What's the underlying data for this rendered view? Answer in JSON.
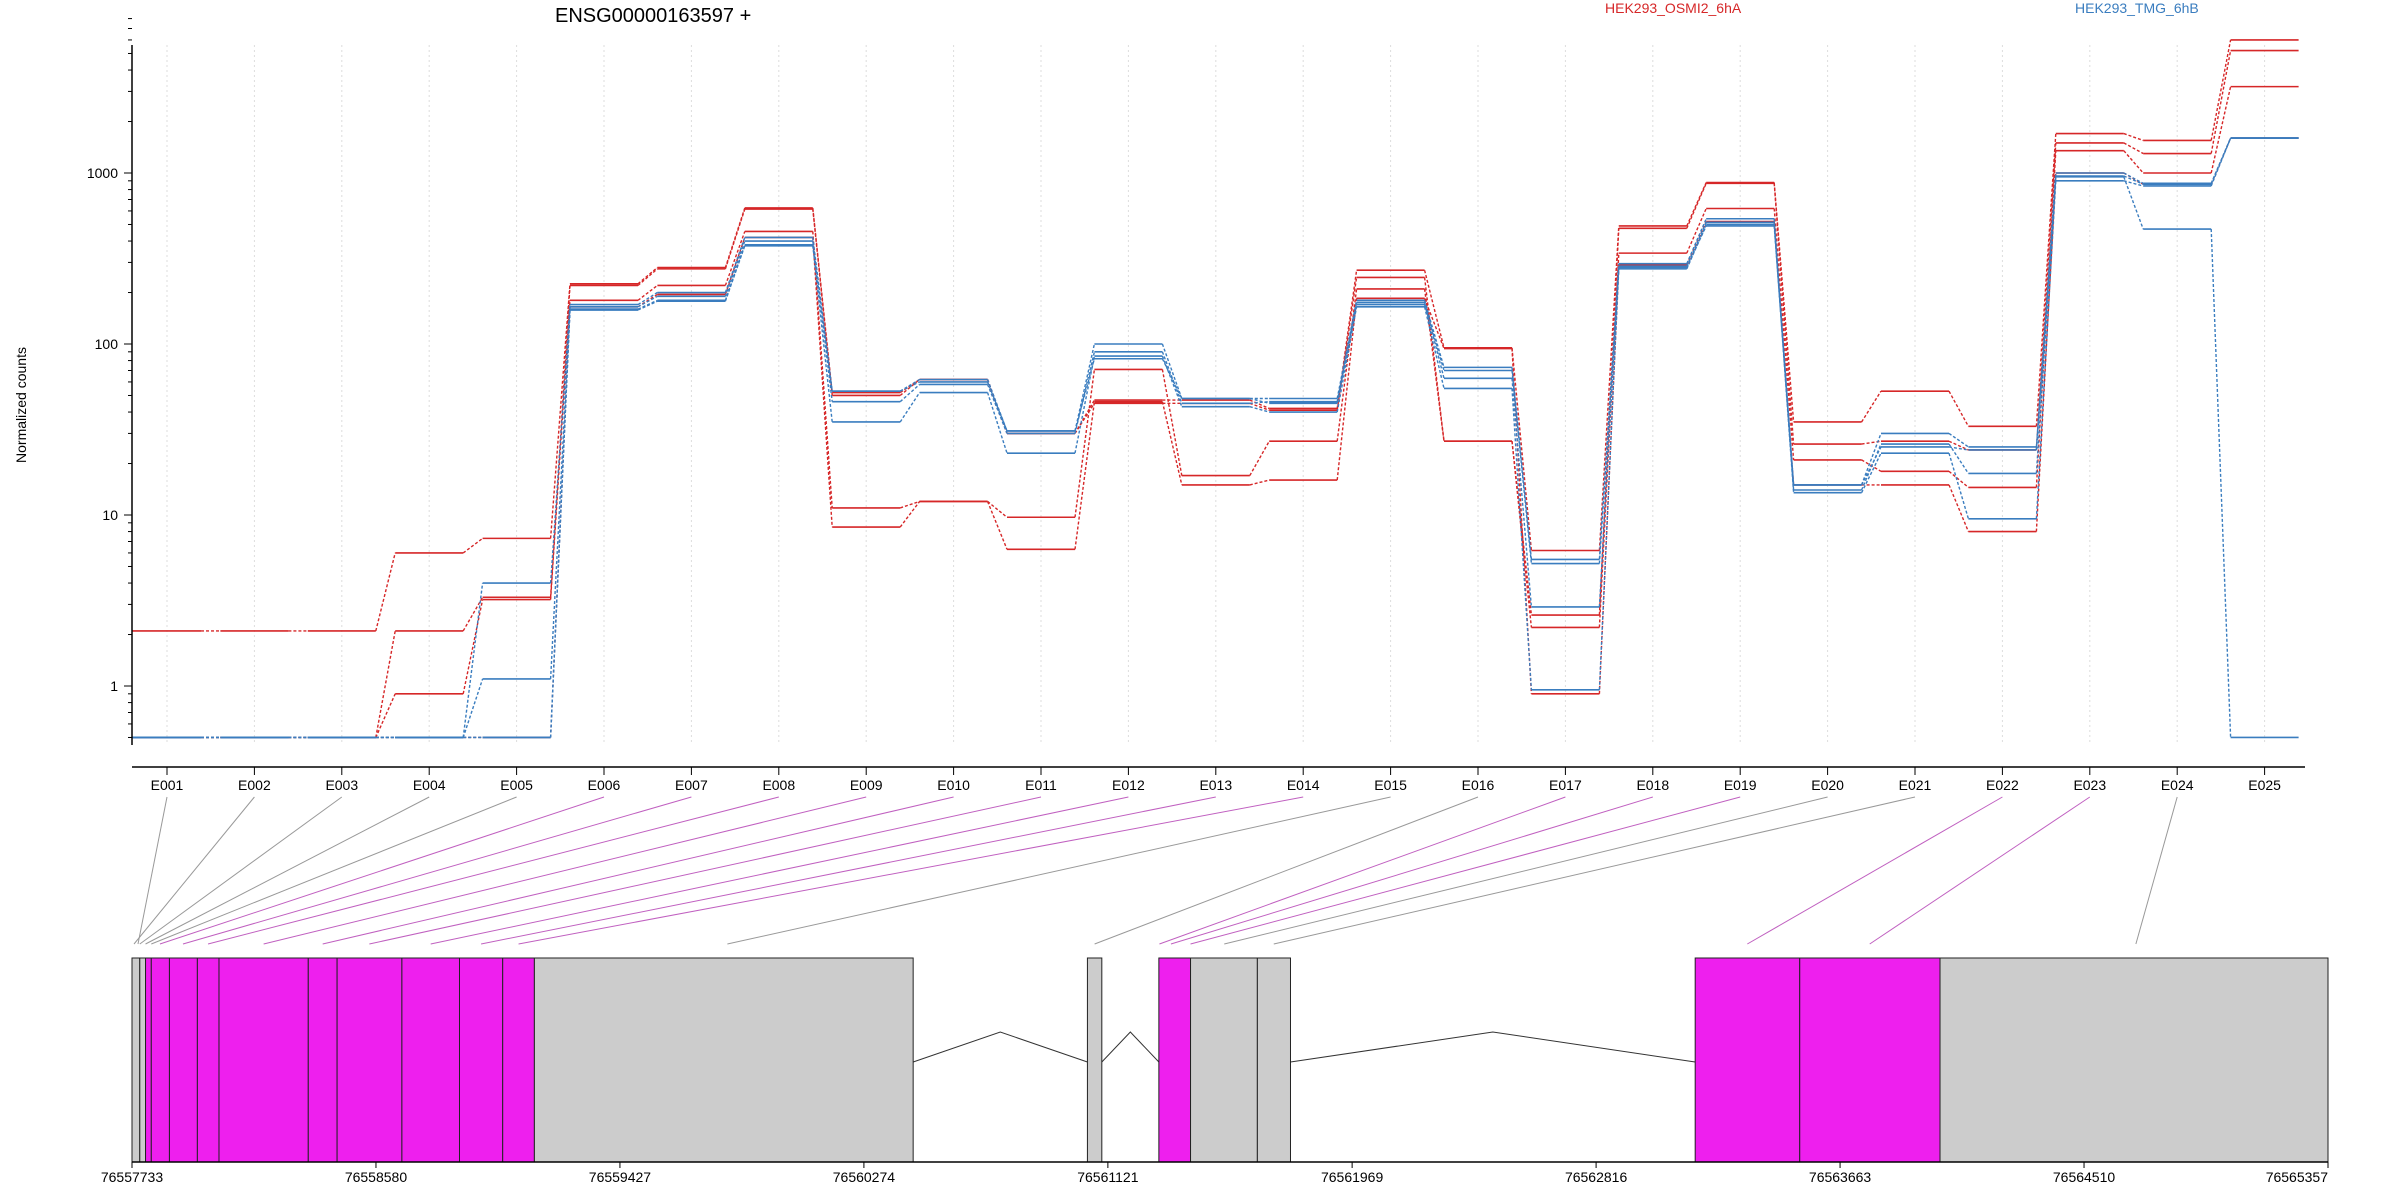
{
  "chart_data": {
    "type": "line",
    "title": "ENSG00000163597 +",
    "ylabel": "Normalized counts",
    "xlabel": "",
    "yscale": "log",
    "ylim": [
      0.5,
      8800
    ],
    "yticks": [
      1,
      10,
      100,
      1000
    ],
    "categories": [
      "E001",
      "E002",
      "E003",
      "E004",
      "E005",
      "E006",
      "E007",
      "E008",
      "E009",
      "E010",
      "E011",
      "E012",
      "E013",
      "E014",
      "E015",
      "E016",
      "E017",
      "E018",
      "E019",
      "E020",
      "E021",
      "E022",
      "E023",
      "E024",
      "E025"
    ],
    "legend": [
      {
        "name": "HEK293_OSMI2_6hA",
        "color": "#d62728"
      },
      {
        "name": "HEK293_TMG_6hB",
        "color": "#3a7dbf"
      }
    ],
    "series": [
      {
        "name": "HEK293_OSMI2_6hA",
        "color": "#d62728",
        "values": [
          2.1,
          2.1,
          2.1,
          6.0,
          7.3,
          225,
          280,
          625,
          52,
          62,
          30,
          47,
          47,
          42,
          270,
          95,
          6.2,
          490,
          880,
          35,
          53,
          33,
          1700,
          1550,
          6000
        ]
      },
      {
        "name": "HEK293_OSMI2_6hA",
        "color": "#d62728",
        "values": [
          0.5,
          0.5,
          0.5,
          2.1,
          3.3,
          220,
          275,
          615,
          50,
          62,
          30,
          45,
          45,
          41,
          245,
          27,
          2.6,
          475,
          870,
          26,
          27,
          24,
          1500,
          1300,
          5200
        ]
      },
      {
        "name": "HEK293_OSMI2_6hA",
        "color": "#d62728",
        "values": [
          0.5,
          0.5,
          0.5,
          0.9,
          3.2,
          180,
          220,
          455,
          11,
          12,
          9.7,
          71,
          17,
          27,
          210,
          27,
          2.2,
          340,
          620,
          21,
          18,
          14.5,
          1350,
          1000,
          3200
        ]
      },
      {
        "name": "HEK293_OSMI2_6hA",
        "color": "#d62728",
        "values": [
          0.5,
          0.5,
          0.5,
          0.5,
          0.5,
          165,
          195,
          420,
          8.5,
          12,
          6.3,
          46,
          15,
          16,
          185,
          94,
          0.9,
          290,
          520,
          15,
          15,
          8,
          1000,
          860,
          1600
        ]
      },
      {
        "name": "HEK293_TMG_6hB",
        "color": "#3a7dbf",
        "values": [
          0.5,
          0.5,
          0.5,
          0.5,
          4.0,
          170,
          200,
          420,
          53,
          62,
          31,
          100,
          48,
          48,
          180,
          73,
          5.5,
          295,
          540,
          15,
          30,
          25,
          1000,
          870,
          1600
        ]
      },
      {
        "name": "HEK293_TMG_6hB",
        "color": "#3a7dbf",
        "values": [
          0.5,
          0.5,
          0.5,
          0.5,
          1.1,
          165,
          190,
          400,
          46,
          58,
          30,
          90,
          45,
          46,
          175,
          63,
          2.9,
          285,
          515,
          14,
          26,
          17.5,
          960,
          860,
          1600
        ]
      },
      {
        "name": "HEK293_TMG_6hB",
        "color": "#3a7dbf",
        "values": [
          0.5,
          0.5,
          0.5,
          0.5,
          0.5,
          160,
          180,
          380,
          35,
          52,
          23,
          85,
          43,
          40,
          165,
          55,
          0.95,
          275,
          500,
          13.5,
          23,
          9.5,
          900,
          840,
          1600
        ]
      },
      {
        "name": "HEK293_TMG_6hB",
        "color": "#3a7dbf",
        "values": [
          0.5,
          0.5,
          0.5,
          0.5,
          0.5,
          158,
          178,
          375,
          53,
          60,
          31,
          82,
          48,
          45,
          170,
          70,
          5.2,
          280,
          490,
          15,
          25,
          24,
          950,
          470,
          0.5
        ]
      }
    ],
    "gene_model": {
      "start": 76557733,
      "end": 76565357,
      "coord_ticks": [
        "76557733",
        "76558580",
        "76559427",
        "76560274",
        "76561121",
        "76561969",
        "76562816",
        "76563663",
        "76564510",
        "76565357"
      ],
      "exons": [
        {
          "start": 76557733,
          "end": 76557760,
          "color": "#cccccc"
        },
        {
          "start": 76557760,
          "end": 76557780,
          "color": "#cccccc"
        },
        {
          "start": 76557780,
          "end": 76557800,
          "color": "#ee1fee"
        },
        {
          "start": 76557800,
          "end": 76557863,
          "color": "#ee1fee"
        },
        {
          "start": 76557863,
          "end": 76557960,
          "color": "#ee1fee"
        },
        {
          "start": 76557960,
          "end": 76558035,
          "color": "#ee1fee"
        },
        {
          "start": 76558035,
          "end": 76558345,
          "color": "#ee1fee"
        },
        {
          "start": 76558345,
          "end": 76558445,
          "color": "#ee1fee"
        },
        {
          "start": 76558445,
          "end": 76558670,
          "color": "#ee1fee"
        },
        {
          "start": 76558670,
          "end": 76558870,
          "color": "#ee1fee"
        },
        {
          "start": 76558870,
          "end": 76559020,
          "color": "#ee1fee"
        },
        {
          "start": 76559020,
          "end": 76559130,
          "color": "#ee1fee"
        },
        {
          "start": 76559130,
          "end": 76560445,
          "color": "#cccccc"
        },
        {
          "start": 76561050,
          "end": 76561100,
          "color": "#cccccc"
        },
        {
          "start": 76561298,
          "end": 76561408,
          "color": "#ee1fee"
        },
        {
          "start": 76561408,
          "end": 76561640,
          "color": "#cccccc"
        },
        {
          "start": 76561640,
          "end": 76561755,
          "color": "#cccccc"
        },
        {
          "start": 76563160,
          "end": 76563523,
          "color": "#ee1fee"
        },
        {
          "start": 76563523,
          "end": 76564010,
          "color": "#ee1fee"
        },
        {
          "start": 76564010,
          "end": 76565357,
          "color": "#cccccc"
        }
      ],
      "introns": [
        [
          76560445,
          76561050
        ],
        [
          76561100,
          76561298
        ],
        [
          76561755,
          76563160
        ]
      ],
      "links": [
        {
          "bin": 1,
          "pos": 76557740,
          "color": "#999999"
        },
        {
          "bin": 2,
          "pos": 76557760,
          "color": "#999999"
        },
        {
          "bin": 3,
          "pos": 76557780,
          "color": "#999999"
        },
        {
          "bin": 4,
          "pos": 76557800,
          "color": "#999999"
        },
        {
          "bin": 5,
          "pos": 76557830,
          "color": "#c060c0"
        },
        {
          "bin": 6,
          "pos": 76557910,
          "color": "#c060c0"
        },
        {
          "bin": 7,
          "pos": 76557997,
          "color": "#c060c0"
        },
        {
          "bin": 8,
          "pos": 76558190,
          "color": "#c060c0"
        },
        {
          "bin": 9,
          "pos": 76558395,
          "color": "#c060c0"
        },
        {
          "bin": 10,
          "pos": 76558557,
          "color": "#c060c0"
        },
        {
          "bin": 11,
          "pos": 76558770,
          "color": "#c060c0"
        },
        {
          "bin": 12,
          "pos": 76558945,
          "color": "#c060c0"
        },
        {
          "bin": 13,
          "pos": 76559075,
          "color": "#c060c0"
        },
        {
          "bin": 14,
          "pos": 76559800,
          "color": "#999999"
        },
        {
          "bin": 15,
          "pos": 76561075,
          "color": "#999999"
        },
        {
          "bin": 16,
          "pos": 76561300,
          "color": "#c060c0"
        },
        {
          "bin": 17,
          "pos": 76561340,
          "color": "#c060c0"
        },
        {
          "bin": 18,
          "pos": 76561408,
          "color": "#c060c0"
        },
        {
          "bin": 19,
          "pos": 76561525,
          "color": "#999999"
        },
        {
          "bin": 20,
          "pos": 76561697,
          "color": "#999999"
        },
        {
          "bin": 21,
          "pos": 76563341,
          "color": "#c060c0"
        },
        {
          "bin": 22,
          "pos": 76563766,
          "color": "#c060c0"
        },
        {
          "bin": 23,
          "pos": 76564690,
          "color": "#999999"
        }
      ]
    }
  }
}
